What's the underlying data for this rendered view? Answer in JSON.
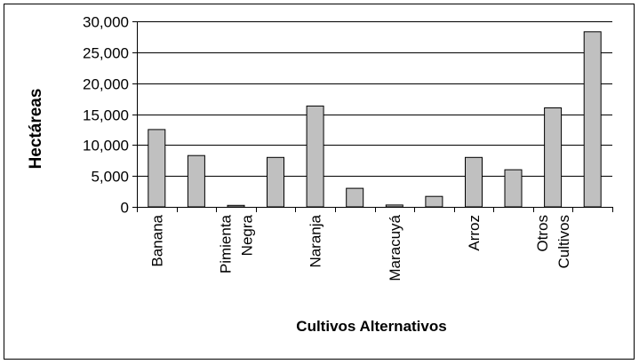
{
  "chart_data": {
    "type": "bar",
    "title": "",
    "xlabel": "Cultivos Alternativos",
    "ylabel": "Hectáreas",
    "ylim": [
      0,
      30000
    ],
    "yticks": [
      0,
      5000,
      10000,
      15000,
      20000,
      25000,
      30000
    ],
    "ytick_labels": [
      "0",
      "5,000",
      "10,000",
      "15,000",
      "20,000",
      "25,000",
      "30,000"
    ],
    "grid": "horizontal",
    "legend": "none",
    "bar_color": "#c0c0c0",
    "categories": [
      [
        "Banana"
      ],
      [],
      [
        "Pimienta",
        "Negra"
      ],
      [],
      [
        "Naranja"
      ],
      [],
      [
        "Maracuyá"
      ],
      [],
      [
        "Arroz"
      ],
      [],
      [
        "Otros",
        "Cultivos"
      ],
      []
    ],
    "values": [
      12500,
      8300,
      250,
      8000,
      16300,
      3000,
      300,
      1700,
      8000,
      6000,
      16000,
      28300
    ]
  }
}
